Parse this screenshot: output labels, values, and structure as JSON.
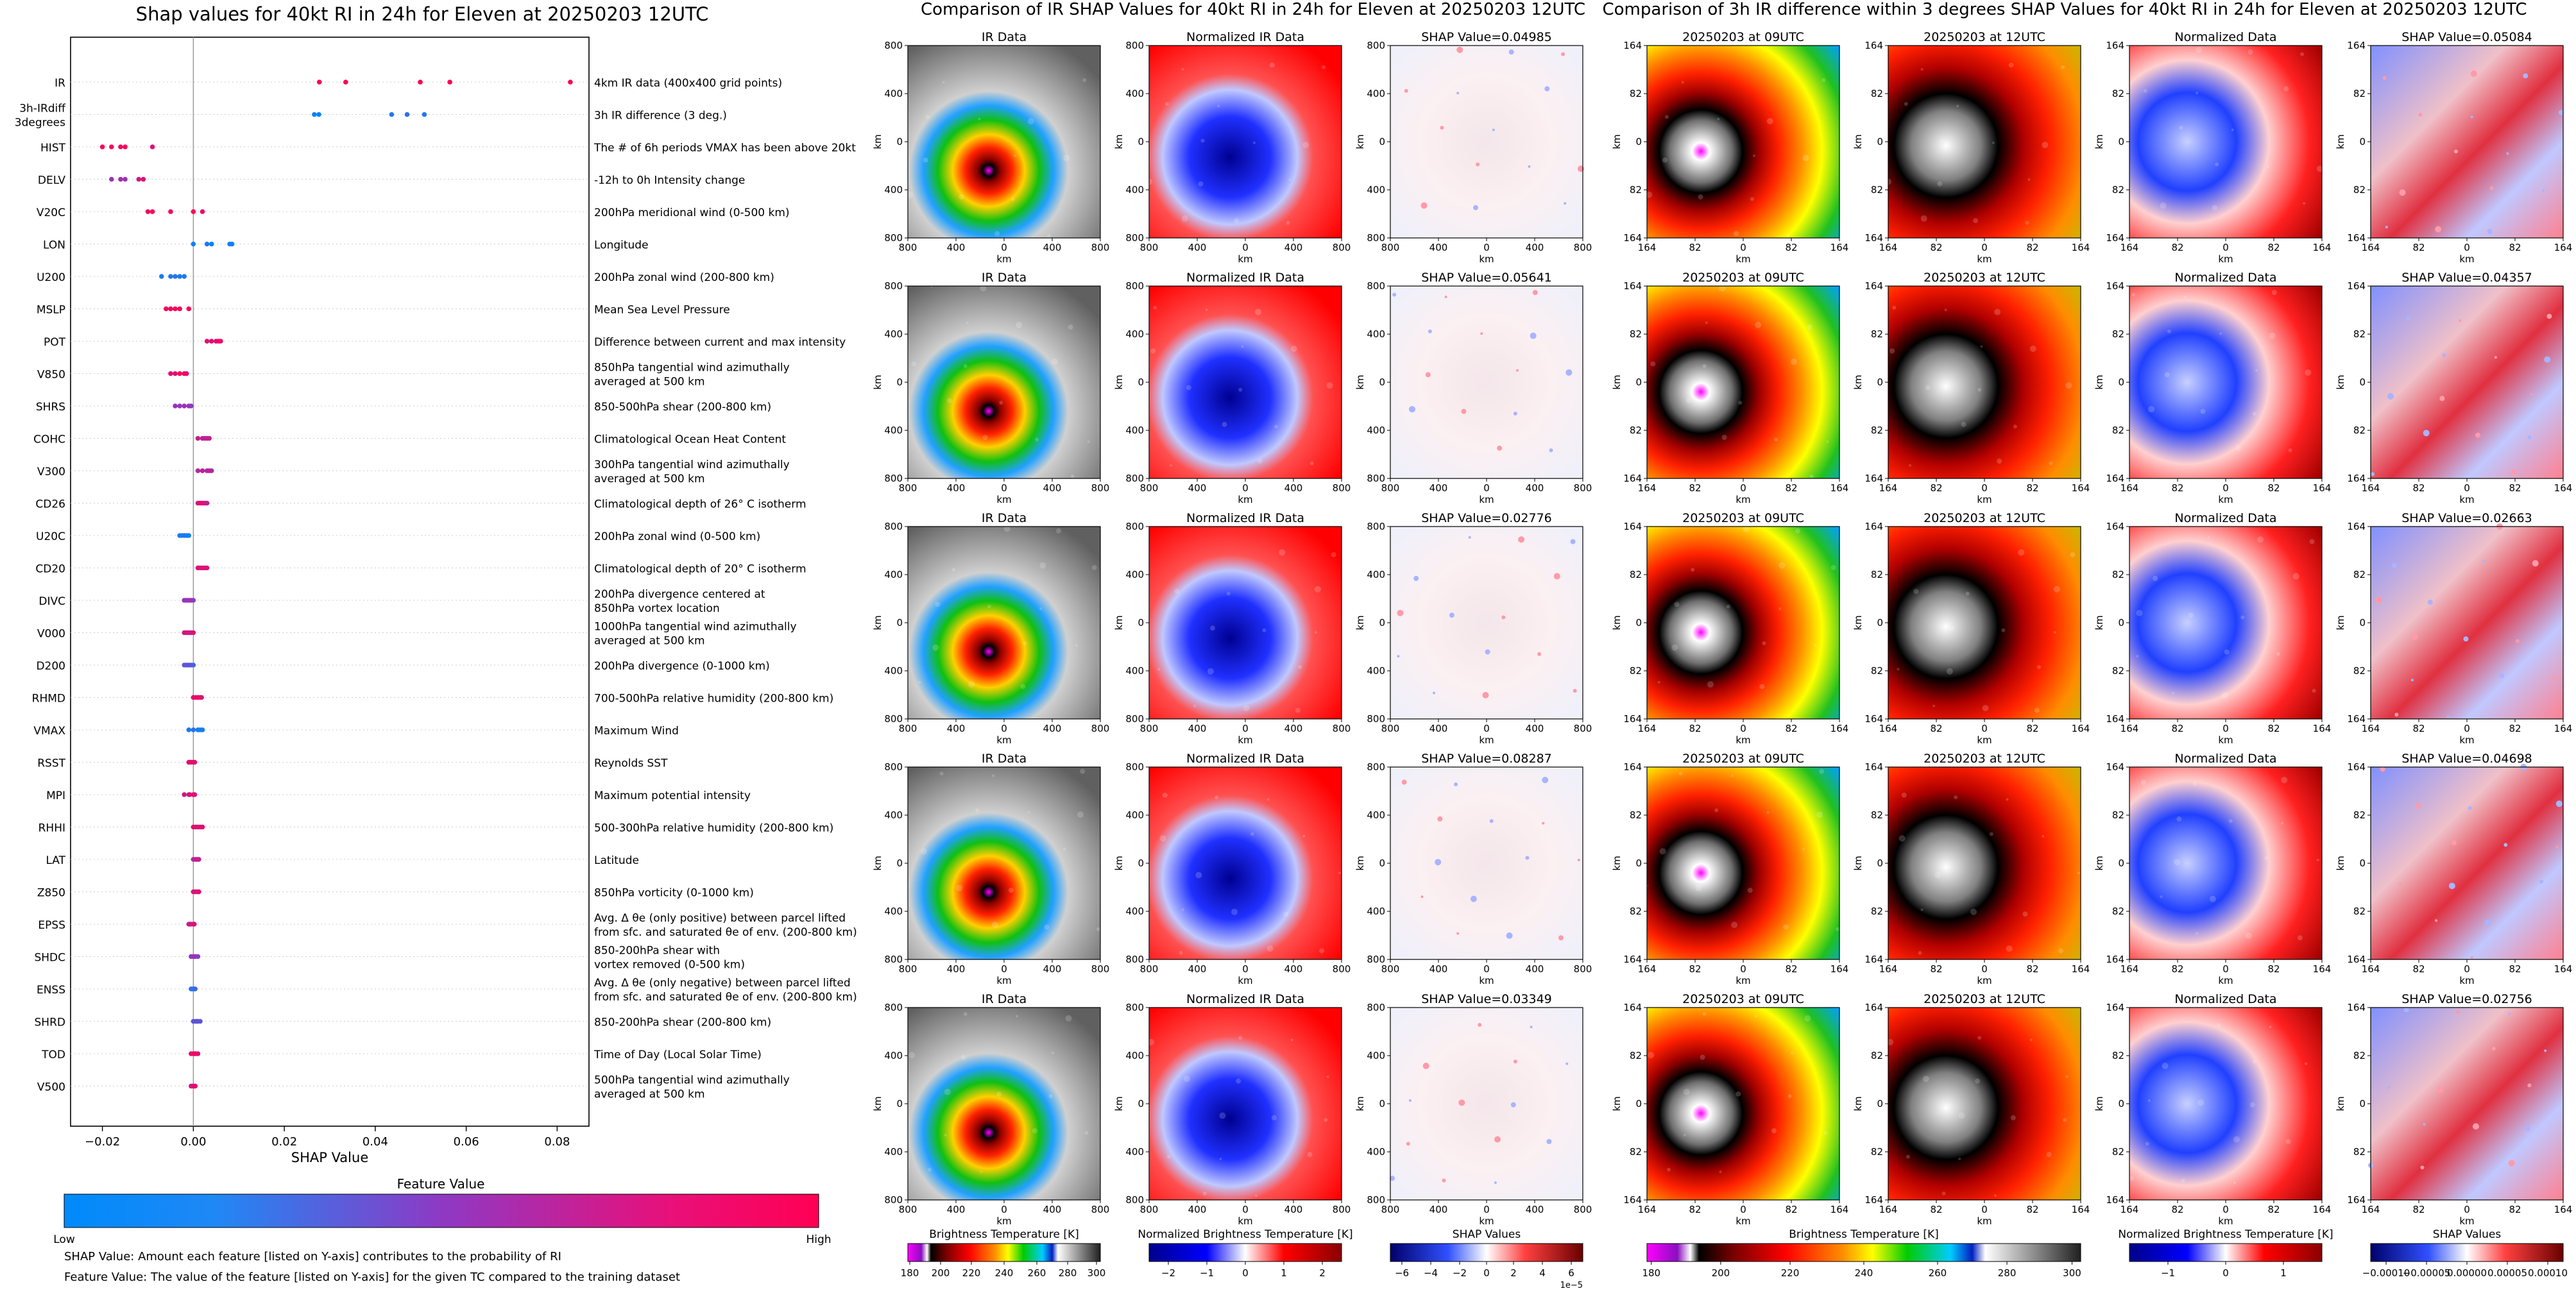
{
  "shap_summary": {
    "title": "Shap values for 40kt RI in 24h for Eleven at 20250203 12UTC",
    "xlabel": "SHAP Value",
    "x_ticks": [
      "−0.02",
      "0.00",
      "0.02",
      "0.04",
      "0.06",
      "0.08"
    ],
    "features": [
      {
        "code": "IR",
        "desc": "4km IR data (400x400 grid points)"
      },
      {
        "code": "3h-IRdiff\n3degrees",
        "desc": "3h IR difference (3 deg.)"
      },
      {
        "code": "HIST",
        "desc": "The # of 6h periods VMAX has been above 20kt"
      },
      {
        "code": "DELV",
        "desc": "-12h to 0h Intensity change"
      },
      {
        "code": "V20C",
        "desc": "200hPa meridional wind (0-500 km)"
      },
      {
        "code": "LON",
        "desc": "Longitude"
      },
      {
        "code": "U200",
        "desc": "200hPa zonal wind (200-800 km)"
      },
      {
        "code": "MSLP",
        "desc": "Mean Sea Level Pressure"
      },
      {
        "code": "POT",
        "desc": "Difference between current and max intensity"
      },
      {
        "code": "V850",
        "desc": "850hPa tangential wind azimuthally\naveraged at 500 km"
      },
      {
        "code": "SHRS",
        "desc": "850-500hPa shear (200-800 km)"
      },
      {
        "code": "COHC",
        "desc": "Climatological Ocean Heat Content"
      },
      {
        "code": "V300",
        "desc": "300hPa tangential wind azimuthally\naveraged at 500 km"
      },
      {
        "code": "CD26",
        "desc": "Climatological depth of 26° C isotherm"
      },
      {
        "code": "U20C",
        "desc": "200hPa zonal wind (0-500 km)"
      },
      {
        "code": "CD20",
        "desc": "Climatological depth of 20° C isotherm"
      },
      {
        "code": "DIVC",
        "desc": "200hPa divergence centered at\n850hPa vortex location"
      },
      {
        "code": "V000",
        "desc": "1000hPa tangential wind azimuthally\naveraged at 500 km"
      },
      {
        "code": "D200",
        "desc": "200hPa divergence (0-1000 km)"
      },
      {
        "code": "RHMD",
        "desc": "700-500hPa relative humidity (200-800 km)"
      },
      {
        "code": "VMAX",
        "desc": "Maximum Wind"
      },
      {
        "code": "RSST",
        "desc": "Reynolds SST"
      },
      {
        "code": "MPI",
        "desc": "Maximum potential intensity"
      },
      {
        "code": "RHHI",
        "desc": "500-300hPa relative humidity (200-800 km)"
      },
      {
        "code": "LAT",
        "desc": "Latitude"
      },
      {
        "code": "Z850",
        "desc": "850hPa vorticity (0-1000 km)"
      },
      {
        "code": "EPSS",
        "desc": "Avg. Δ θe (only positive) between parcel lifted\nfrom sfc. and saturated θe of env. (200-800 km)"
      },
      {
        "code": "SHDC",
        "desc": "850-200hPa shear with\nvortex removed (0-500 km)"
      },
      {
        "code": "ENSS",
        "desc": "Avg. Δ θe (only negative) between parcel lifted\nfrom sfc. and saturated θe of env. (200-800 km)"
      },
      {
        "code": "SHRD",
        "desc": "850-200hPa shear (200-800 km)"
      },
      {
        "code": "TOD",
        "desc": "Time of Day (Local Solar Time)"
      },
      {
        "code": "V500",
        "desc": "500hPa tangential wind azimuthally\naveraged at 500 km"
      }
    ],
    "colorbar": {
      "title": "Feature Value",
      "low_label": "Low",
      "high_label": "High",
      "low_color": "#008afb",
      "high_color": "#ff0053"
    },
    "notes": [
      "SHAP Value: Amount each feature [listed on Y-axis] contributes to the probability of RI",
      "Feature Value: The value of the feature [listed on Y-axis] for the given TC compared to the training dataset"
    ]
  },
  "ir_panel": {
    "title": "Comparison of IR SHAP Values for 40kt RI in 24h for Eleven at 20250203 12UTC",
    "col_titles": [
      "IR Data",
      "Normalized IR Data"
    ],
    "shap_titles": [
      "SHAP Value=0.04985",
      "SHAP Value=0.05641",
      "SHAP Value=0.02776",
      "SHAP Value=0.08287",
      "SHAP Value=0.03349"
    ],
    "axis_label": "km",
    "ticks": [
      "800",
      "400",
      "0",
      "400",
      "800"
    ],
    "colorbars": [
      {
        "title": "Brightness Temperature [K]",
        "ticks": [
          "180",
          "200",
          "220",
          "240",
          "260",
          "280",
          "300"
        ]
      },
      {
        "title": "Normalized Brightness Temperature [K]",
        "ticks": [
          "−2",
          "−1",
          "0",
          "1",
          "2"
        ]
      },
      {
        "title": "SHAP Values",
        "ticks": [
          "−6",
          "−4",
          "−2",
          "0",
          "2",
          "4",
          "6"
        ],
        "offset": "1e−5"
      }
    ]
  },
  "diff_panel": {
    "title": "Comparison of 3h IR difference within 3 degrees SHAP Values for 40kt RI in 24h for Eleven at 20250203 12UTC",
    "col_titles": [
      "20250203 at 09UTC",
      "20250203 at 12UTC",
      "Normalized Data"
    ],
    "shap_titles": [
      "SHAP Value=0.05084",
      "SHAP Value=0.04357",
      "SHAP Value=0.02663",
      "SHAP Value=0.04698",
      "SHAP Value=0.02756"
    ],
    "axis_label": "km",
    "ticks": [
      "164",
      "82",
      "0",
      "82",
      "164"
    ],
    "colorbars": [
      {
        "title": "Brightness Temperature [K]",
        "ticks": [
          "180",
          "200",
          "220",
          "240",
          "260",
          "280",
          "300"
        ]
      },
      {
        "title": "Normalized Brightness Temperature [K]",
        "ticks": [
          "−1",
          "0",
          "1"
        ]
      },
      {
        "title": "SHAP Values",
        "ticks": [
          "−0.00010",
          "−0.00005",
          "0.00000",
          "0.00005",
          "0.00010"
        ]
      }
    ]
  },
  "chart_data": [
    {
      "type": "scatter",
      "title": "Shap values for 40kt RI in 24h for Eleven at 20250203 12UTC",
      "xlabel": "SHAP Value",
      "xlim": [
        -0.027,
        0.087
      ],
      "categories": [
        "IR",
        "3h-IRdiff 3degrees",
        "HIST",
        "DELV",
        "V20C",
        "LON",
        "U200",
        "MSLP",
        "POT",
        "V850",
        "SHRS",
        "COHC",
        "V300",
        "CD26",
        "U20C",
        "CD20",
        "DIVC",
        "V000",
        "D200",
        "RHMD",
        "VMAX",
        "RSST",
        "MPI",
        "RHHI",
        "LAT",
        "Z850",
        "EPSS",
        "SHDC",
        "ENSS",
        "SHRD",
        "TOD",
        "V500"
      ],
      "points": [
        [
          [
            0.0277,
            1
          ],
          [
            0.0335,
            1
          ],
          [
            0.0499,
            1
          ],
          [
            0.0564,
            1
          ],
          [
            0.0829,
            1
          ]
        ],
        [
          [
            0.0266,
            0.05
          ],
          [
            0.0276,
            0.05
          ],
          [
            0.0436,
            0.1
          ],
          [
            0.047,
            0.15
          ],
          [
            0.0508,
            0.1
          ]
        ],
        [
          [
            -0.02,
            1
          ],
          [
            -0.018,
            0.95
          ],
          [
            -0.016,
            0.9
          ],
          [
            -0.015,
            1
          ],
          [
            -0.009,
            0.85
          ]
        ],
        [
          [
            -0.018,
            0.55
          ],
          [
            -0.016,
            0.6
          ],
          [
            -0.015,
            0.55
          ],
          [
            -0.012,
            0.8
          ],
          [
            -0.011,
            0.85
          ]
        ],
        [
          [
            -0.01,
            0.95
          ],
          [
            -0.009,
            1
          ],
          [
            -0.005,
            0.95
          ],
          [
            0.0,
            1
          ],
          [
            0.002,
            0.9
          ]
        ],
        [
          [
            0.0,
            0.05
          ],
          [
            0.003,
            0.1
          ],
          [
            0.004,
            0.05
          ],
          [
            0.008,
            0.1
          ],
          [
            0.0085,
            0.05
          ]
        ],
        [
          [
            -0.007,
            0.1
          ],
          [
            -0.005,
            0.1
          ],
          [
            -0.004,
            0.15
          ],
          [
            -0.003,
            0.1
          ],
          [
            -0.002,
            0.1
          ]
        ],
        [
          [
            -0.006,
            0.95
          ],
          [
            -0.005,
            0.9
          ],
          [
            -0.004,
            1
          ],
          [
            -0.003,
            0.95
          ],
          [
            -0.001,
            1
          ]
        ],
        [
          [
            0.003,
            0.85
          ],
          [
            0.004,
            0.9
          ],
          [
            0.005,
            0.85
          ],
          [
            0.006,
            0.95
          ],
          [
            0.0055,
            0.9
          ]
        ],
        [
          [
            -0.005,
            0.9
          ],
          [
            -0.004,
            0.85
          ],
          [
            -0.003,
            1
          ],
          [
            -0.002,
            0.95
          ],
          [
            -0.0015,
            0.9
          ]
        ],
        [
          [
            -0.004,
            0.55
          ],
          [
            -0.003,
            0.5
          ],
          [
            -0.002,
            0.6
          ],
          [
            -0.001,
            0.55
          ],
          [
            -0.0005,
            0.5
          ]
        ],
        [
          [
            0.001,
            0.75
          ],
          [
            0.002,
            0.7
          ],
          [
            0.003,
            0.8
          ],
          [
            0.0035,
            0.75
          ],
          [
            0.0025,
            0.7
          ]
        ],
        [
          [
            0.001,
            0.65
          ],
          [
            0.002,
            0.7
          ],
          [
            0.003,
            0.65
          ],
          [
            0.004,
            0.6
          ],
          [
            0.0035,
            0.7
          ]
        ],
        [
          [
            0.001,
            0.8
          ],
          [
            0.002,
            0.85
          ],
          [
            0.0025,
            0.8
          ],
          [
            0.003,
            0.75
          ],
          [
            0.0015,
            0.9
          ]
        ],
        [
          [
            -0.003,
            0.1
          ],
          [
            -0.002,
            0.15
          ],
          [
            -0.0015,
            0.1
          ],
          [
            -0.001,
            0.05
          ],
          [
            -0.0025,
            0.1
          ]
        ],
        [
          [
            0.001,
            0.85
          ],
          [
            0.0015,
            0.8
          ],
          [
            0.002,
            0.9
          ],
          [
            0.0025,
            0.85
          ],
          [
            0.003,
            0.8
          ]
        ],
        [
          [
            -0.002,
            0.55
          ],
          [
            -0.001,
            0.5
          ],
          [
            -0.0005,
            0.6
          ],
          [
            -0.0015,
            0.55
          ],
          [
            0.0,
            0.5
          ]
        ],
        [
          [
            -0.002,
            0.8
          ],
          [
            -0.0015,
            0.85
          ],
          [
            -0.001,
            0.75
          ],
          [
            -0.0005,
            0.8
          ],
          [
            0.0,
            0.85
          ]
        ],
        [
          [
            -0.002,
            0.3
          ],
          [
            -0.001,
            0.35
          ],
          [
            -0.0005,
            0.3
          ],
          [
            0.0,
            0.25
          ],
          [
            -0.0015,
            0.35
          ]
        ],
        [
          [
            0.0,
            0.9
          ],
          [
            0.0005,
            0.85
          ],
          [
            0.001,
            0.95
          ],
          [
            0.0015,
            0.9
          ],
          [
            0.0018,
            0.85
          ]
        ],
        [
          [
            -0.001,
            0.1
          ],
          [
            0.0,
            0.15
          ],
          [
            0.001,
            0.1
          ],
          [
            0.0015,
            0.05
          ],
          [
            0.002,
            0.1
          ]
        ],
        [
          [
            -0.001,
            0.85
          ],
          [
            -0.0005,
            0.8
          ],
          [
            0.0,
            0.9
          ],
          [
            0.0003,
            0.85
          ],
          [
            -0.0008,
            0.9
          ]
        ],
        [
          [
            -0.002,
            0.85
          ],
          [
            -0.001,
            0.3
          ],
          [
            0.0,
            0.9
          ],
          [
            0.0003,
            0.85
          ],
          [
            -0.0008,
            0.9
          ]
        ],
        [
          [
            0.0,
            0.85
          ],
          [
            0.0005,
            0.9
          ],
          [
            0.001,
            0.8
          ],
          [
            0.0015,
            0.85
          ],
          [
            0.002,
            0.9
          ]
        ],
        [
          [
            0.0,
            0.7
          ],
          [
            0.0005,
            0.75
          ],
          [
            0.001,
            0.7
          ],
          [
            0.0012,
            0.65
          ],
          [
            0.0008,
            0.75
          ]
        ],
        [
          [
            0.0,
            0.85
          ],
          [
            0.0005,
            0.8
          ],
          [
            0.001,
            0.85
          ],
          [
            0.0012,
            0.9
          ],
          [
            0.0003,
            0.8
          ]
        ],
        [
          [
            -0.001,
            0.8
          ],
          [
            -0.0005,
            0.85
          ],
          [
            0.0,
            0.8
          ],
          [
            -0.0008,
            0.75
          ],
          [
            0.0002,
            0.85
          ]
        ],
        [
          [
            -0.0005,
            0.5
          ],
          [
            0.0,
            0.55
          ],
          [
            0.0005,
            0.5
          ],
          [
            0.001,
            0.45
          ],
          [
            0.0002,
            0.55
          ]
        ],
        [
          [
            -0.0005,
            0.2
          ],
          [
            0.0,
            0.15
          ],
          [
            0.0002,
            0.2
          ],
          [
            -0.0003,
            0.15
          ],
          [
            0.0004,
            0.2
          ]
        ],
        [
          [
            0.0,
            0.3
          ],
          [
            0.0005,
            0.35
          ],
          [
            0.001,
            0.25
          ],
          [
            0.0015,
            0.3
          ],
          [
            0.0008,
            0.35
          ]
        ],
        [
          [
            -0.0005,
            0.9
          ],
          [
            0.0,
            0.85
          ],
          [
            0.0005,
            0.9
          ],
          [
            0.001,
            0.85
          ],
          [
            0.0003,
            0.95
          ]
        ],
        [
          [
            -0.0005,
            0.85
          ],
          [
            0.0,
            0.9
          ],
          [
            0.0002,
            0.85
          ],
          [
            -0.0003,
            0.8
          ],
          [
            0.0004,
            0.9
          ]
        ]
      ]
    }
  ]
}
